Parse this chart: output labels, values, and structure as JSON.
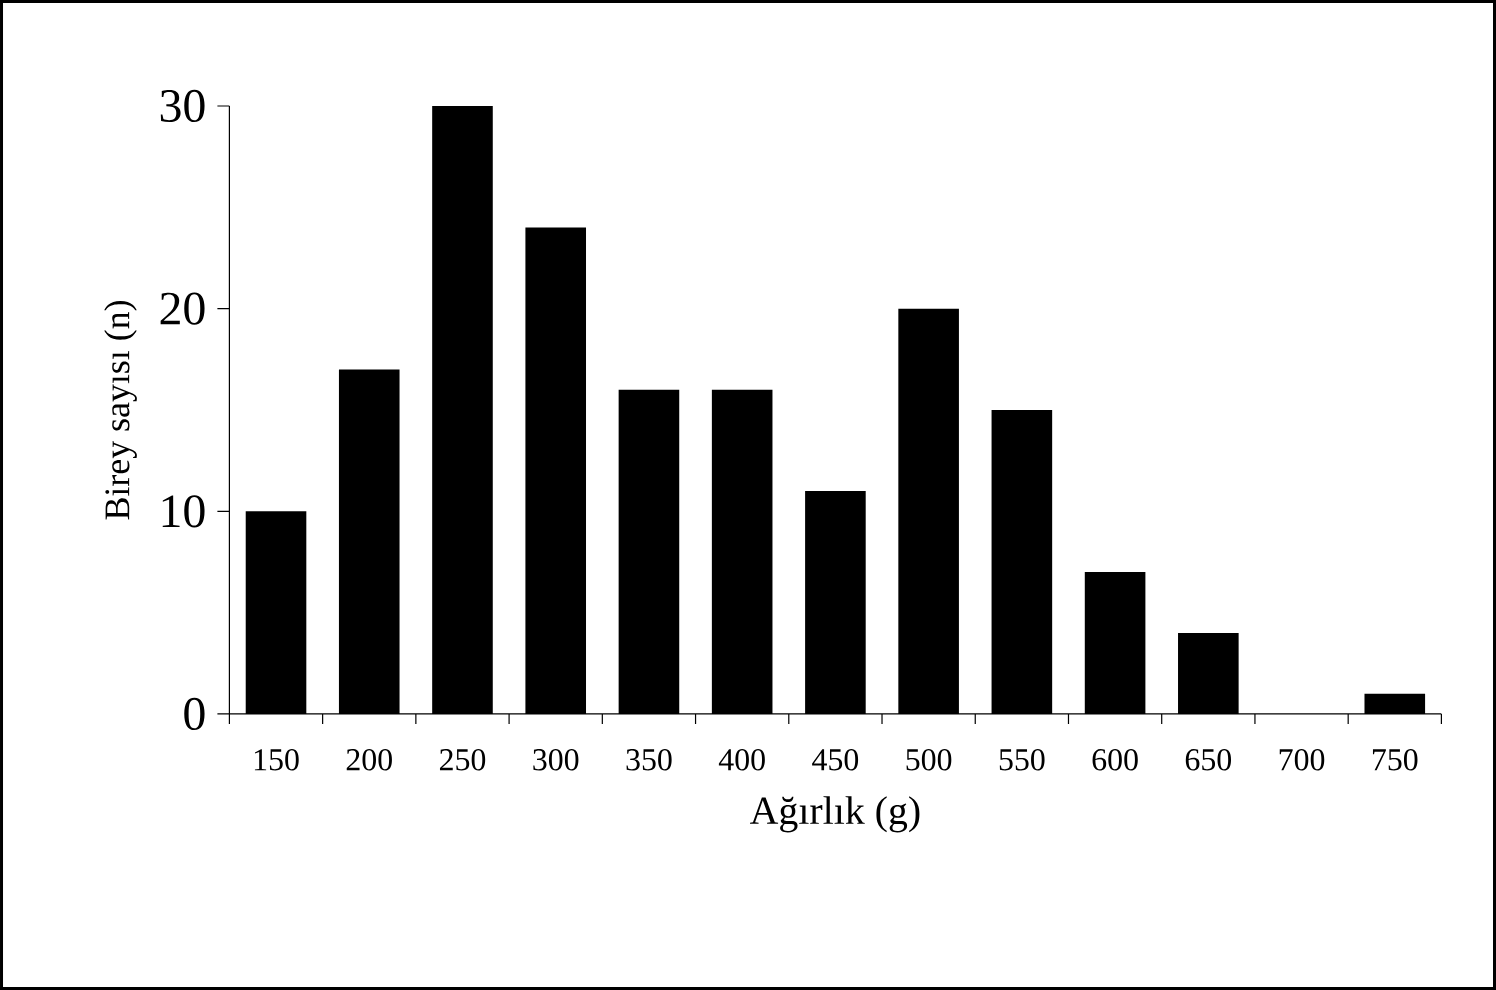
{
  "chart_data": {
    "type": "bar",
    "xlabel": "Ağırlık (g)",
    "ylabel": "Birey sayısı (n)",
    "categories": [
      "150",
      "200",
      "250",
      "300",
      "350",
      "400",
      "450",
      "500",
      "550",
      "600",
      "650",
      "700",
      "750"
    ],
    "values": [
      10,
      17,
      30,
      24,
      16,
      16,
      11,
      20,
      15,
      7,
      4,
      0,
      1
    ],
    "color": "#000000",
    "ylim": [
      0,
      30
    ],
    "yticks": [
      0,
      10,
      20,
      30
    ]
  }
}
